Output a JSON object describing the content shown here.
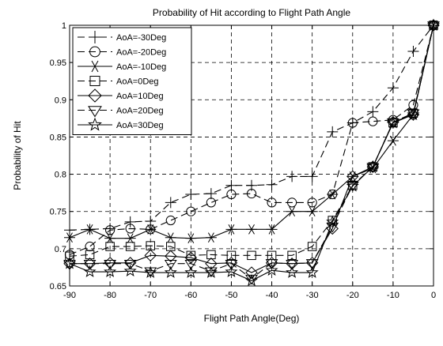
{
  "chart_data": {
    "type": "line",
    "title": "Probability of Hit according to Flight Path Angle",
    "xlabel": "Flight Path Angle(Deg)",
    "ylabel": "Probability of Hit",
    "xlim": [
      -90,
      0
    ],
    "ylim": [
      0.65,
      1
    ],
    "xticks": [
      -90,
      -80,
      -70,
      -60,
      -50,
      -40,
      -30,
      -20,
      -10,
      0
    ],
    "yticks": [
      0.65,
      0.7,
      0.75,
      0.8,
      0.85,
      0.9,
      0.95,
      1
    ],
    "ytick_labels": [
      "0.65",
      "0.7",
      "0.75",
      "0.8",
      "0.85",
      "0.9",
      "0.95",
      "1"
    ],
    "grid": true,
    "legend_position": "top-left",
    "x": [
      -90,
      -85,
      -80,
      -75,
      -70,
      -65,
      -60,
      -55,
      -50,
      -45,
      -40,
      -35,
      -30,
      -25,
      -20,
      -15,
      -10,
      -5,
      0
    ],
    "series": [
      {
        "name": "AoA=-30Deg",
        "marker": "plus",
        "line": "dashed",
        "values": [
          0.725,
          0.726,
          0.727,
          0.736,
          0.737,
          0.762,
          0.773,
          0.774,
          0.785,
          0.785,
          0.786,
          0.797,
          0.797,
          0.857,
          0.869,
          0.884,
          0.916,
          0.965,
          1.0
        ]
      },
      {
        "name": "AoA=-20Deg",
        "marker": "circle",
        "line": "dashed",
        "values": [
          0.692,
          0.703,
          0.725,
          0.727,
          0.726,
          0.738,
          0.75,
          0.762,
          0.773,
          0.774,
          0.762,
          0.762,
          0.762,
          0.773,
          0.869,
          0.871,
          0.873,
          0.893,
          1.0
        ]
      },
      {
        "name": "AoA=-10Deg",
        "marker": "star6",
        "line": "solid",
        "values": [
          0.715,
          0.726,
          0.714,
          0.714,
          0.726,
          0.715,
          0.714,
          0.715,
          0.726,
          0.726,
          0.726,
          0.75,
          0.75,
          0.773,
          0.797,
          0.808,
          0.845,
          0.88,
          1.0
        ]
      },
      {
        "name": "AoA=0Deg",
        "marker": "square",
        "line": "dashed",
        "values": [
          0.69,
          0.692,
          0.703,
          0.703,
          0.704,
          0.703,
          0.691,
          0.692,
          0.691,
          0.691,
          0.691,
          0.691,
          0.703,
          0.738,
          0.785,
          0.81,
          0.869,
          0.882,
          1.0
        ]
      },
      {
        "name": "AoA=10Deg",
        "marker": "diamond",
        "line": "solid",
        "values": [
          0.68,
          0.68,
          0.681,
          0.681,
          0.691,
          0.69,
          0.688,
          0.68,
          0.681,
          0.668,
          0.681,
          0.68,
          0.681,
          0.727,
          0.797,
          0.81,
          0.87,
          0.88,
          1.0
        ]
      },
      {
        "name": "AoA=20Deg",
        "marker": "triangle-down",
        "line": "dashed",
        "values": [
          0.68,
          0.68,
          0.68,
          0.68,
          0.67,
          0.68,
          0.68,
          0.67,
          0.68,
          0.66,
          0.681,
          0.68,
          0.681,
          0.73,
          0.785,
          0.81,
          0.87,
          0.882,
          1.0
        ]
      },
      {
        "name": "AoA=30Deg",
        "marker": "pentagram",
        "line": "solid",
        "values": [
          0.68,
          0.669,
          0.669,
          0.67,
          0.668,
          0.668,
          0.668,
          0.668,
          0.669,
          0.657,
          0.671,
          0.668,
          0.668,
          0.736,
          0.784,
          0.81,
          0.869,
          0.88,
          1.0
        ]
      }
    ]
  }
}
